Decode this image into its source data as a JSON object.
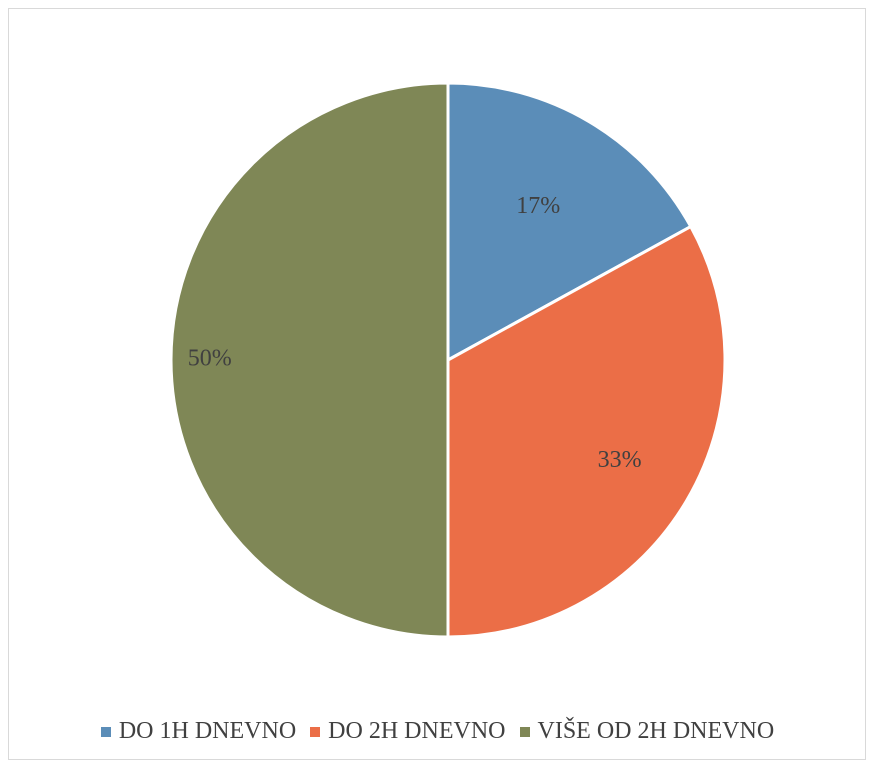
{
  "chart_data": {
    "type": "pie",
    "categories": [
      "DO 1H DNEVNO",
      "DO 2H DNEVNO",
      "VIŠE OD 2H DNEVNO"
    ],
    "values": [
      17,
      33,
      50
    ],
    "labels": [
      "17%",
      "33%",
      "50%"
    ],
    "unit": "%",
    "colors": [
      "#5B8DB8",
      "#EB6E47",
      "#7F8756"
    ],
    "legend_position": "bottom",
    "start_angle": "top",
    "direction": "clockwise"
  }
}
